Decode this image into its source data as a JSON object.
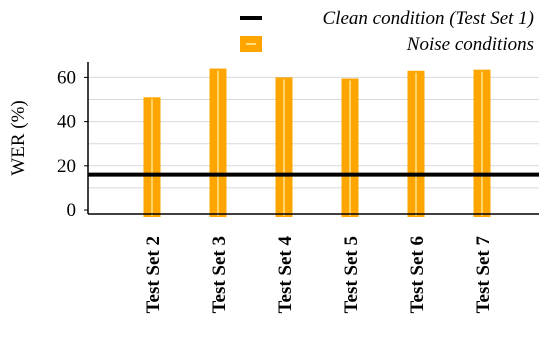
{
  "chart_data": {
    "type": "bar",
    "categories": [
      "Test Set 2",
      "Test Set 3",
      "Test Set 4",
      "Test Set 5",
      "Test Set 6",
      "Test Set 7"
    ],
    "series": [
      {
        "name": "Noise conditions",
        "values": [
          51,
          64,
          60,
          59.5,
          63,
          63.5
        ]
      }
    ],
    "reference_line": {
      "name": "Clean condition (Test Set 1)",
      "value": 16
    },
    "title": "",
    "xlabel": "",
    "ylabel": "WER (%)",
    "ylim": [
      0,
      70
    ],
    "yticks": [
      0,
      20,
      40,
      60
    ],
    "grid": true,
    "legend_position": "top-right",
    "colors": {
      "bar": "#FFA500",
      "bar_center_line": "#FFF2B0",
      "reference_line": "#000000",
      "grid": "#d8d8d8"
    }
  }
}
